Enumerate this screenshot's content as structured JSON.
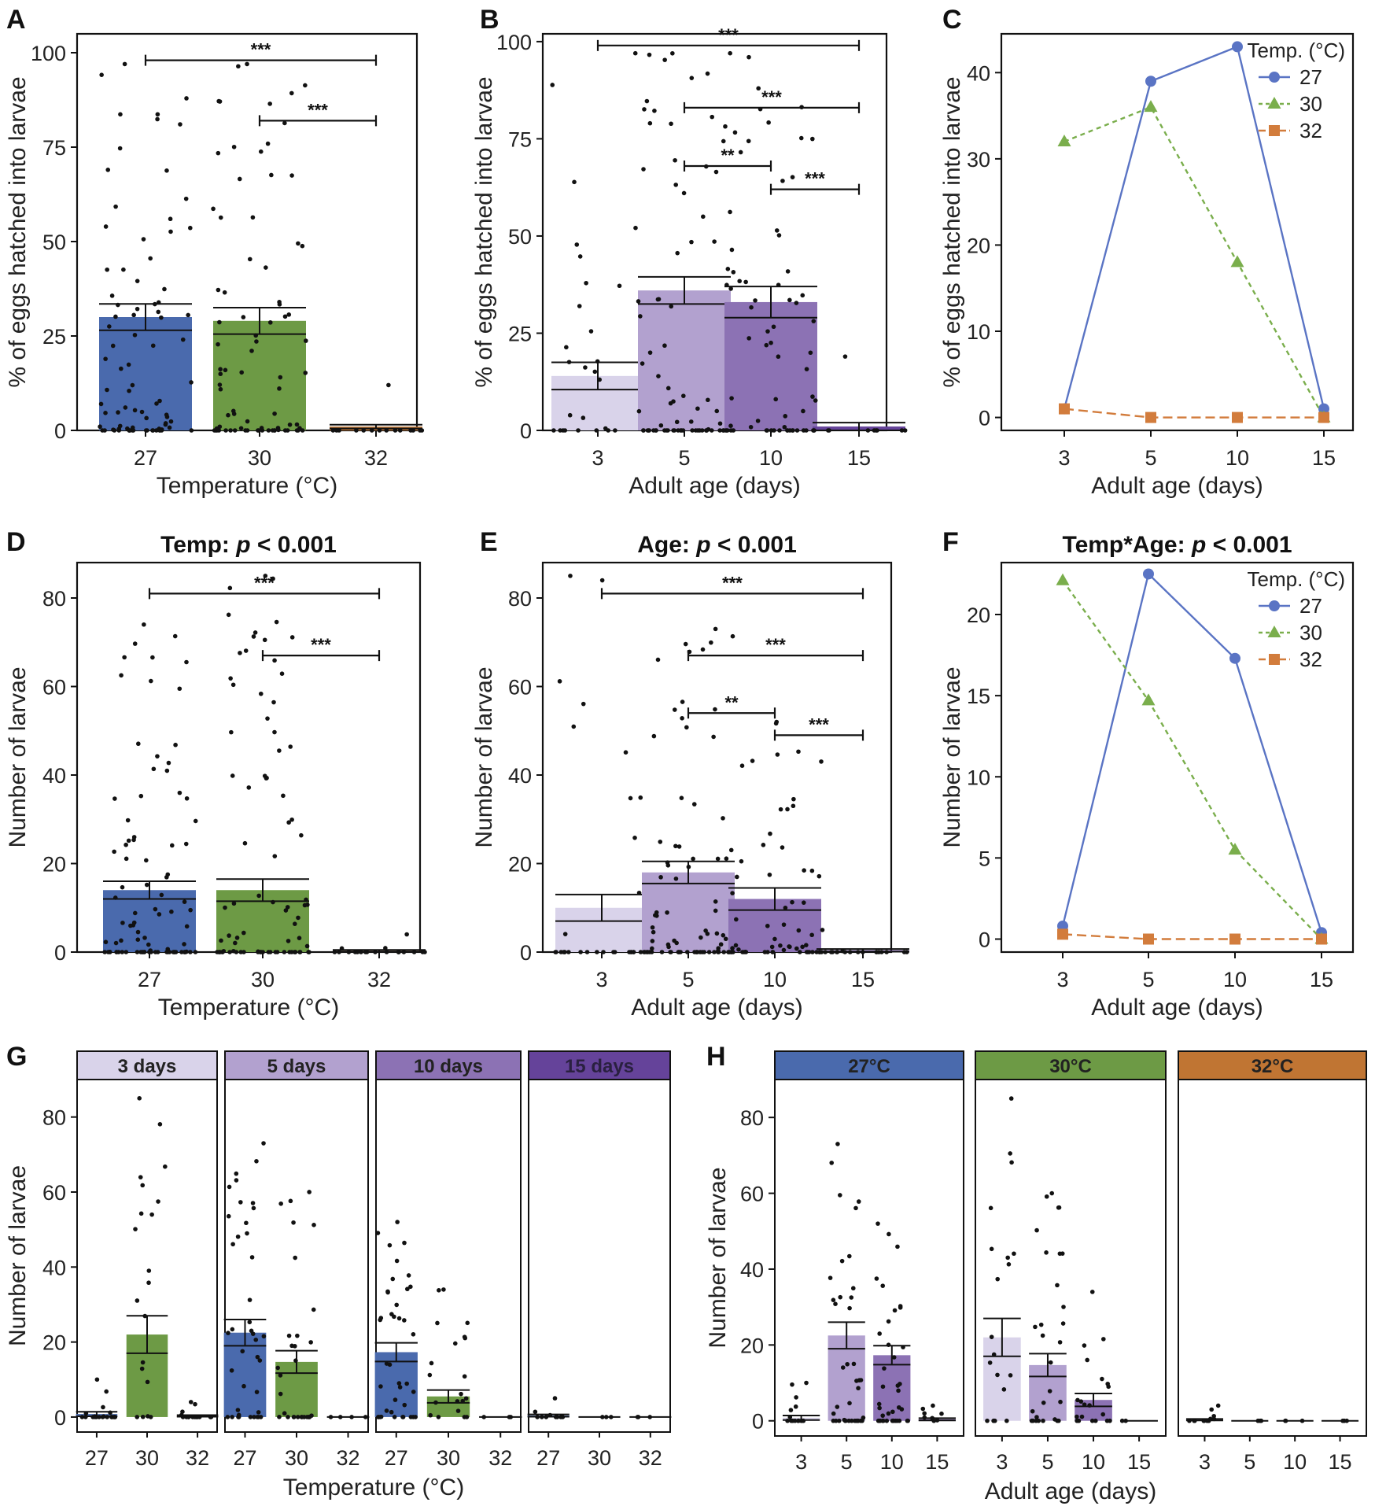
{
  "colors": {
    "t27": "#4a6aad",
    "t30": "#6d9a45",
    "t32": "#c07533",
    "a3": "#d9d3ea",
    "a5": "#b2a1cf",
    "a10": "#8c72b4",
    "a15": "#65439a",
    "line27": "#5a74c4",
    "line30": "#7aae4c",
    "line32": "#d27c3c"
  },
  "chart_data": [
    {
      "panel": "A",
      "type": "bar",
      "title": "",
      "xlabel": "Temperature (°C)",
      "ylabel": "% of eggs hatched into larvae",
      "categories": [
        "27",
        "30",
        "32"
      ],
      "values": [
        30,
        29,
        1
      ],
      "errors": [
        3.5,
        3.5,
        0.5
      ],
      "fills": [
        "t27",
        "t30",
        "t32"
      ],
      "ylim": [
        0,
        105
      ],
      "yticks": [
        "0",
        "25",
        "50",
        "75",
        "100"
      ],
      "ytickvals": [
        0,
        25,
        50,
        75,
        100
      ],
      "points": [
        {
          "cat": 0,
          "n": 85,
          "max": 97,
          "zero": 0.3,
          "seed": 11
        },
        {
          "cat": 1,
          "n": 80,
          "max": 97,
          "zero": 0.3,
          "seed": 23
        },
        {
          "cat": 2,
          "n": 15,
          "max": 12,
          "zero": 0.85,
          "seed": 37
        }
      ],
      "brackets": [
        {
          "from": 0,
          "to": 2,
          "y": 98,
          "label": "***"
        },
        {
          "from": 1,
          "to": 2,
          "y": 82,
          "label": "***"
        }
      ]
    },
    {
      "panel": "B",
      "type": "bar",
      "title": "",
      "xlabel": "Adult age (days)",
      "ylabel": "% of eggs hatched into larvae",
      "categories": [
        "3",
        "5",
        "10",
        "15"
      ],
      "values": [
        14,
        36,
        33,
        1
      ],
      "errors": [
        3.5,
        3.5,
        4,
        1
      ],
      "fills": [
        "a3",
        "a5",
        "a10",
        "a15"
      ],
      "ylim": [
        0,
        102
      ],
      "yticks": [
        "0",
        "25",
        "50",
        "75",
        "100"
      ],
      "ytickvals": [
        0,
        25,
        50,
        75,
        100
      ],
      "points": [
        {
          "cat": 0,
          "n": 30,
          "max": 97,
          "zero": 0.45,
          "seed": 51
        },
        {
          "cat": 1,
          "n": 75,
          "max": 97,
          "zero": 0.3,
          "seed": 63
        },
        {
          "cat": 2,
          "n": 65,
          "max": 96,
          "zero": 0.3,
          "seed": 77
        },
        {
          "cat": 3,
          "n": 10,
          "max": 19,
          "zero": 0.85,
          "seed": 89
        }
      ],
      "brackets": [
        {
          "from": 0,
          "to": 3,
          "y": 99,
          "label": "***"
        },
        {
          "from": 1,
          "to": 3,
          "y": 83,
          "label": "***"
        },
        {
          "from": 1,
          "to": 2,
          "y": 68,
          "label": "**"
        },
        {
          "from": 2,
          "to": 3,
          "y": 62,
          "label": "***"
        }
      ]
    },
    {
      "panel": "C",
      "type": "line",
      "title": "",
      "xlabel": "Adult age (days)",
      "ylabel": "% of eggs hatched into larvae",
      "categories": [
        "3",
        "5",
        "10",
        "15"
      ],
      "ylim": [
        -1.5,
        44.5
      ],
      "yticks": [
        "0",
        "10",
        "20",
        "30",
        "40"
      ],
      "ytickvals": [
        0,
        10,
        20,
        30,
        40
      ],
      "legend_title": "Temp. (°C)",
      "series": [
        {
          "name": "27",
          "values": [
            1,
            39,
            43,
            1
          ],
          "color": "line27",
          "marker": "circle",
          "dash": ""
        },
        {
          "name": "30",
          "values": [
            32,
            36,
            18,
            0
          ],
          "color": "line30",
          "marker": "triangle",
          "dash": "6 5"
        },
        {
          "name": "32",
          "values": [
            1,
            0,
            0,
            0
          ],
          "color": "line32",
          "marker": "square",
          "dash": "12 6"
        }
      ]
    },
    {
      "panel": "D",
      "type": "bar",
      "title": "Temp: ",
      "title_p": "p",
      "title_tail": " < 0.001",
      "xlabel": "Temperature (°C)",
      "ylabel": "Number of larvae",
      "categories": [
        "27",
        "30",
        "32"
      ],
      "values": [
        14,
        14,
        0.3
      ],
      "errors": [
        2,
        2.5,
        0.2
      ],
      "fills": [
        "t27",
        "t30",
        "t32"
      ],
      "ylim": [
        0,
        88
      ],
      "yticks": [
        "0",
        "20",
        "40",
        "60",
        "80"
      ],
      "ytickvals": [
        0,
        20,
        40,
        60,
        80
      ],
      "points": [
        {
          "cat": 0,
          "n": 90,
          "max": 74,
          "zero": 0.35,
          "seed": 101
        },
        {
          "cat": 1,
          "n": 85,
          "max": 85,
          "zero": 0.35,
          "seed": 113
        },
        {
          "cat": 2,
          "n": 20,
          "max": 4,
          "zero": 0.8,
          "seed": 127
        }
      ],
      "brackets": [
        {
          "from": 0,
          "to": 2,
          "y": 81,
          "label": "***"
        },
        {
          "from": 1,
          "to": 2,
          "y": 67,
          "label": "***"
        }
      ]
    },
    {
      "panel": "E",
      "type": "bar",
      "title": "Age: ",
      "title_p": "p",
      "title_tail": " < 0.001",
      "xlabel": "Adult age (days)",
      "ylabel": "Number of larvae",
      "categories": [
        "3",
        "5",
        "10",
        "15"
      ],
      "values": [
        10,
        18,
        12,
        0.4
      ],
      "errors": [
        3,
        2.5,
        2.5,
        0.3
      ],
      "fills": [
        "a3",
        "a5",
        "a10",
        "a15"
      ],
      "ylim": [
        0,
        88
      ],
      "yticks": [
        "0",
        "20",
        "40",
        "60",
        "80"
      ],
      "ytickvals": [
        0,
        20,
        40,
        60,
        80
      ],
      "points": [
        {
          "cat": 0,
          "n": 30,
          "max": 85,
          "zero": 0.55,
          "seed": 131
        },
        {
          "cat": 1,
          "n": 80,
          "max": 73,
          "zero": 0.35,
          "seed": 149
        },
        {
          "cat": 2,
          "n": 60,
          "max": 52,
          "zero": 0.35,
          "seed": 157
        },
        {
          "cat": 3,
          "n": 20,
          "max": 5,
          "zero": 0.8,
          "seed": 163
        }
      ],
      "brackets": [
        {
          "from": 0,
          "to": 3,
          "y": 81,
          "label": "***"
        },
        {
          "from": 1,
          "to": 3,
          "y": 67,
          "label": "***"
        },
        {
          "from": 1,
          "to": 2,
          "y": 54,
          "label": "**"
        },
        {
          "from": 2,
          "to": 3,
          "y": 49,
          "label": "***"
        }
      ]
    },
    {
      "panel": "F",
      "type": "line",
      "title": "Temp*Age: ",
      "title_p": "p",
      "title_tail": " < 0.001",
      "xlabel": "Adult age (days)",
      "ylabel": "Number of larvae",
      "categories": [
        "3",
        "5",
        "10",
        "15"
      ],
      "ylim": [
        -0.8,
        23.2
      ],
      "yticks": [
        "0",
        "5",
        "10",
        "15",
        "20"
      ],
      "ytickvals": [
        0,
        5,
        10,
        15,
        20
      ],
      "legend_title": "Temp. (°C)",
      "series": [
        {
          "name": "27",
          "values": [
            0.8,
            22.5,
            17.3,
            0.4
          ],
          "color": "line27",
          "marker": "circle",
          "dash": ""
        },
        {
          "name": "30",
          "values": [
            22.1,
            14.7,
            5.5,
            0
          ],
          "color": "line30",
          "marker": "triangle",
          "dash": "6 5"
        },
        {
          "name": "32",
          "values": [
            0.3,
            0,
            0,
            0
          ],
          "color": "line32",
          "marker": "square",
          "dash": "12 6"
        }
      ]
    },
    {
      "panel": "G",
      "type": "bar",
      "faceted": true,
      "xlabel": "Temperature (°C)",
      "ylabel": "Number of larvae",
      "ylim": [
        -4,
        90
      ],
      "yticks": [
        "0",
        "20",
        "40",
        "60",
        "80"
      ],
      "ytickvals": [
        0,
        20,
        40,
        60,
        80
      ],
      "facets": [
        {
          "strip": "3 days",
          "strip_fill": "a3",
          "categories": [
            "27",
            "30",
            "32"
          ],
          "values": [
            0.8,
            22,
            0.3
          ],
          "errors": [
            0.6,
            5,
            0.2
          ],
          "fills": [
            "t27",
            "t30",
            "t32"
          ],
          "points": [
            {
              "cat": 0,
              "n": 20,
              "max": 10,
              "zero": 0.6,
              "seed": 201
            },
            {
              "cat": 1,
              "n": 20,
              "max": 85,
              "zero": 0.25,
              "seed": 211
            },
            {
              "cat": 2,
              "n": 15,
              "max": 4,
              "zero": 0.7,
              "seed": 221
            }
          ]
        },
        {
          "strip": "5 days",
          "strip_fill": "a5",
          "categories": [
            "27",
            "30",
            "32"
          ],
          "values": [
            22.5,
            14.7,
            0
          ],
          "errors": [
            3.5,
            3,
            0
          ],
          "fills": [
            "t27",
            "t30",
            "t32"
          ],
          "points": [
            {
              "cat": 0,
              "n": 40,
              "max": 73,
              "zero": 0.25,
              "seed": 231
            },
            {
              "cat": 1,
              "n": 30,
              "max": 60,
              "zero": 0.25,
              "seed": 241
            },
            {
              "cat": 2,
              "n": 4,
              "max": 0,
              "zero": 1,
              "seed": 251
            }
          ]
        },
        {
          "strip": "10 days",
          "strip_fill": "a10",
          "categories": [
            "27",
            "30",
            "32"
          ],
          "values": [
            17.3,
            5.5,
            0
          ],
          "errors": [
            2.5,
            1.7,
            0
          ],
          "fills": [
            "t27",
            "t30",
            "t32"
          ],
          "points": [
            {
              "cat": 0,
              "n": 40,
              "max": 52,
              "zero": 0.25,
              "seed": 261
            },
            {
              "cat": 1,
              "n": 20,
              "max": 34,
              "zero": 0.25,
              "seed": 271
            },
            {
              "cat": 2,
              "n": 3,
              "max": 0,
              "zero": 1,
              "seed": 281
            }
          ]
        },
        {
          "strip": "15 days",
          "strip_fill": "a15",
          "categories": [
            "27",
            "30",
            "32"
          ],
          "values": [
            0.4,
            0,
            0
          ],
          "errors": [
            0.3,
            0,
            0
          ],
          "fills": [
            "t27",
            "t30",
            "t32"
          ],
          "points": [
            {
              "cat": 0,
              "n": 10,
              "max": 5,
              "zero": 0.7,
              "seed": 291
            },
            {
              "cat": 1,
              "n": 3,
              "max": 0,
              "zero": 1,
              "seed": 301
            },
            {
              "cat": 2,
              "n": 3,
              "max": 0,
              "zero": 1,
              "seed": 311
            }
          ]
        }
      ]
    },
    {
      "panel": "H",
      "type": "bar",
      "faceted": true,
      "xlabel": "Adult age (days)",
      "ylabel": "Number of larvae",
      "ylim": [
        -4,
        90
      ],
      "yticks": [
        "0",
        "20",
        "40",
        "60",
        "80"
      ],
      "ytickvals": [
        0,
        20,
        40,
        60,
        80
      ],
      "facets": [
        {
          "strip": "27°C",
          "strip_fill": "t27",
          "categories": [
            "3",
            "5",
            "10",
            "15"
          ],
          "values": [
            0.8,
            22.5,
            17.3,
            0.4
          ],
          "errors": [
            0.6,
            3.5,
            2.5,
            0.3
          ],
          "fills": [
            "a3",
            "a5",
            "a10",
            "a15"
          ],
          "points": [
            {
              "cat": 0,
              "n": 15,
              "max": 10,
              "zero": 0.6,
              "seed": 401
            },
            {
              "cat": 1,
              "n": 40,
              "max": 73,
              "zero": 0.25,
              "seed": 411
            },
            {
              "cat": 2,
              "n": 40,
              "max": 52,
              "zero": 0.25,
              "seed": 421
            },
            {
              "cat": 3,
              "n": 8,
              "max": 4,
              "zero": 0.7,
              "seed": 431
            }
          ]
        },
        {
          "strip": "30°C",
          "strip_fill": "t30",
          "categories": [
            "3",
            "5",
            "10",
            "15"
          ],
          "values": [
            22,
            14.7,
            5.5,
            0
          ],
          "errors": [
            5,
            3,
            1.7,
            0
          ],
          "fills": [
            "a3",
            "a5",
            "a10",
            "a15"
          ],
          "points": [
            {
              "cat": 0,
              "n": 20,
              "max": 85,
              "zero": 0.25,
              "seed": 441
            },
            {
              "cat": 1,
              "n": 30,
              "max": 60,
              "zero": 0.25,
              "seed": 451
            },
            {
              "cat": 2,
              "n": 20,
              "max": 34,
              "zero": 0.25,
              "seed": 461
            },
            {
              "cat": 3,
              "n": 2,
              "max": 0,
              "zero": 1,
              "seed": 471
            }
          ]
        },
        {
          "strip": "32°C",
          "strip_fill": "t32",
          "categories": [
            "3",
            "5",
            "10",
            "15"
          ],
          "values": [
            0.3,
            0,
            0,
            0
          ],
          "errors": [
            0.2,
            0,
            0,
            0
          ],
          "fills": [
            "a3",
            "a5",
            "a10",
            "a15"
          ],
          "points": [
            {
              "cat": 0,
              "n": 12,
              "max": 4,
              "zero": 0.7,
              "seed": 481
            },
            {
              "cat": 1,
              "n": 3,
              "max": 0,
              "zero": 1,
              "seed": 491
            },
            {
              "cat": 2,
              "n": 3,
              "max": 0,
              "zero": 1,
              "seed": 501
            },
            {
              "cat": 3,
              "n": 3,
              "max": 0,
              "zero": 1,
              "seed": 511
            }
          ]
        }
      ]
    }
  ]
}
